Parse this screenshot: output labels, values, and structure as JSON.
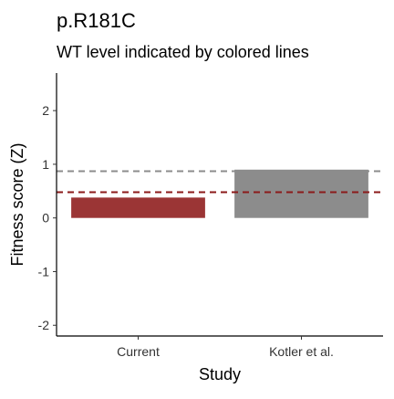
{
  "chart_data": {
    "type": "bar",
    "title": "p.R181C",
    "subtitle": "WT level indicated by colored lines",
    "xlabel": "Study",
    "ylabel": "Fitness score (Z)",
    "categories": [
      "Current",
      "Kotler et al."
    ],
    "values": [
      0.38,
      0.9
    ],
    "bar_colors": [
      "#9b3535",
      "#8c8c8c"
    ],
    "reference_lines": [
      {
        "value": 0.87,
        "color": "#8c8c8c",
        "style": "dashed"
      },
      {
        "value": 0.48,
        "color": "#8b1a1a",
        "style": "dashed"
      }
    ],
    "ylim": [
      -2.2,
      2.7
    ],
    "y_ticks": [
      -2,
      -1,
      0,
      1,
      2
    ],
    "y_tick_labels": [
      "-2",
      "-1",
      "0",
      "1",
      "2"
    ],
    "grid": false,
    "legend": "none"
  }
}
